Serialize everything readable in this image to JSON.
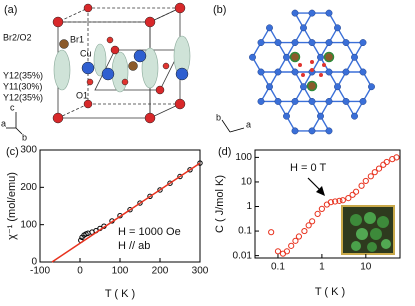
{
  "panel_a": {
    "label": "(a)",
    "atoms": [
      "Br2/O2",
      "Br1",
      "Cu",
      "Y12(35%)",
      "Y11(30%)",
      "Y12(35%)",
      "O1"
    ],
    "axes": [
      "c",
      "a",
      "b"
    ]
  },
  "panel_b": {
    "label": "(b)",
    "axes": [
      "b",
      "a"
    ]
  },
  "chart_data": [
    {
      "type": "scatter",
      "label": "(c)",
      "xlabel": "T ( K )",
      "ylabel": "χ⁻¹ (mol/emu)",
      "annotations": [
        "H = 1000 Oe",
        "H // ab"
      ],
      "xlim": [
        -100,
        300
      ],
      "xticks": [
        -100,
        0,
        100,
        200,
        300
      ],
      "ylim": [
        0,
        300
      ],
      "yticks": [
        0,
        100,
        200,
        300
      ],
      "series": [
        {
          "color": "#000000",
          "marker": "circle",
          "x": [
            2,
            5,
            10,
            15,
            20,
            30,
            40,
            50,
            60,
            80,
            100,
            125,
            150,
            175,
            200,
            225,
            250,
            275,
            300
          ],
          "values": [
            58,
            66,
            72,
            75,
            77,
            80,
            84,
            90,
            96,
            110,
            124,
            140,
            158,
            176,
            193,
            211,
            229,
            247,
            265
          ]
        },
        {
          "color": "#e8321e",
          "marker": "line",
          "x": [
            -70,
            300
          ],
          "values": [
            0,
            265
          ]
        }
      ]
    },
    {
      "type": "scatter",
      "label": "(d)",
      "xlabel": "T ( K )",
      "ylabel": "C ( J/mol K)",
      "annotations": [
        "H = 0 T"
      ],
      "xscale": "log",
      "yscale": "log",
      "xlim": [
        0.03,
        60
      ],
      "xticks": [
        0.1,
        1,
        10
      ],
      "ylim": [
        0.008,
        200
      ],
      "yticks": [
        0.01,
        0.1,
        1,
        10,
        100
      ],
      "series": [
        {
          "color": "#e8321e",
          "marker": "open-circle",
          "x": [
            0.07,
            0.1,
            0.13,
            0.16,
            0.2,
            0.25,
            0.3,
            0.4,
            0.5,
            0.6,
            0.8,
            1,
            1.3,
            1.6,
            2,
            2.5,
            3,
            4,
            5,
            6,
            8,
            10,
            13,
            16,
            20,
            25,
            30,
            40,
            50
          ],
          "values": [
            0.09,
            0.015,
            0.012,
            0.015,
            0.025,
            0.04,
            0.06,
            0.1,
            0.17,
            0.25,
            0.5,
            0.8,
            1.2,
            1.5,
            1.6,
            1.7,
            1.8,
            2.2,
            3,
            4,
            7,
            11,
            17,
            25,
            35,
            50,
            65,
            85,
            100
          ]
        }
      ]
    }
  ]
}
